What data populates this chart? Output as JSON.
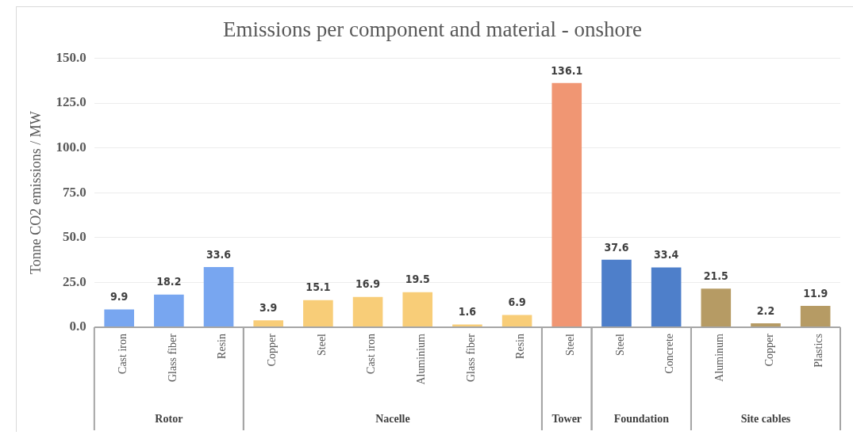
{
  "chart_data": {
    "type": "bar",
    "title": "Emissions per component and material - onshore",
    "ylabel": "Tonne CO2 emissions / MW",
    "categories": [
      "Cast iron",
      "Glass fiber",
      "Resin",
      "Copper",
      "Steel",
      "Cast iron",
      "Aluminium",
      "Glass fiber",
      "Resin",
      "Steel",
      "Steel",
      "Concrete",
      "Aluminum",
      "Copper",
      "Plastics"
    ],
    "values": [
      9.9,
      18.2,
      33.6,
      3.9,
      15.1,
      16.9,
      19.5,
      1.6,
      6.9,
      136.1,
      37.6,
      33.4,
      21.5,
      2.2,
      11.9
    ],
    "colors": [
      "#78a6f0",
      "#78a6f0",
      "#78a6f0",
      "#f8cd78",
      "#f8cd78",
      "#f8cd78",
      "#f8cd78",
      "#f8cd78",
      "#f8cd78",
      "#f09673",
      "#4e7fca",
      "#4e7fca",
      "#b69b64",
      "#b69b64",
      "#b69b64"
    ],
    "annotations": [
      "Rotor",
      "Nacelle",
      "Tower",
      "Foundation",
      "Site cables"
    ],
    "ylim": [
      0,
      150
    ],
    "yticks": [
      {
        "value": 0,
        "label": "0.0"
      },
      {
        "value": 25,
        "label": "25.0"
      },
      {
        "value": 50,
        "label": "50.0"
      },
      {
        "value": 75,
        "label": "75.0"
      },
      {
        "value": 100,
        "label": "100.0"
      },
      {
        "value": 125,
        "label": "125.0"
      },
      {
        "value": 150,
        "label": "150.0"
      }
    ],
    "grid": "y",
    "data_labels": true
  }
}
